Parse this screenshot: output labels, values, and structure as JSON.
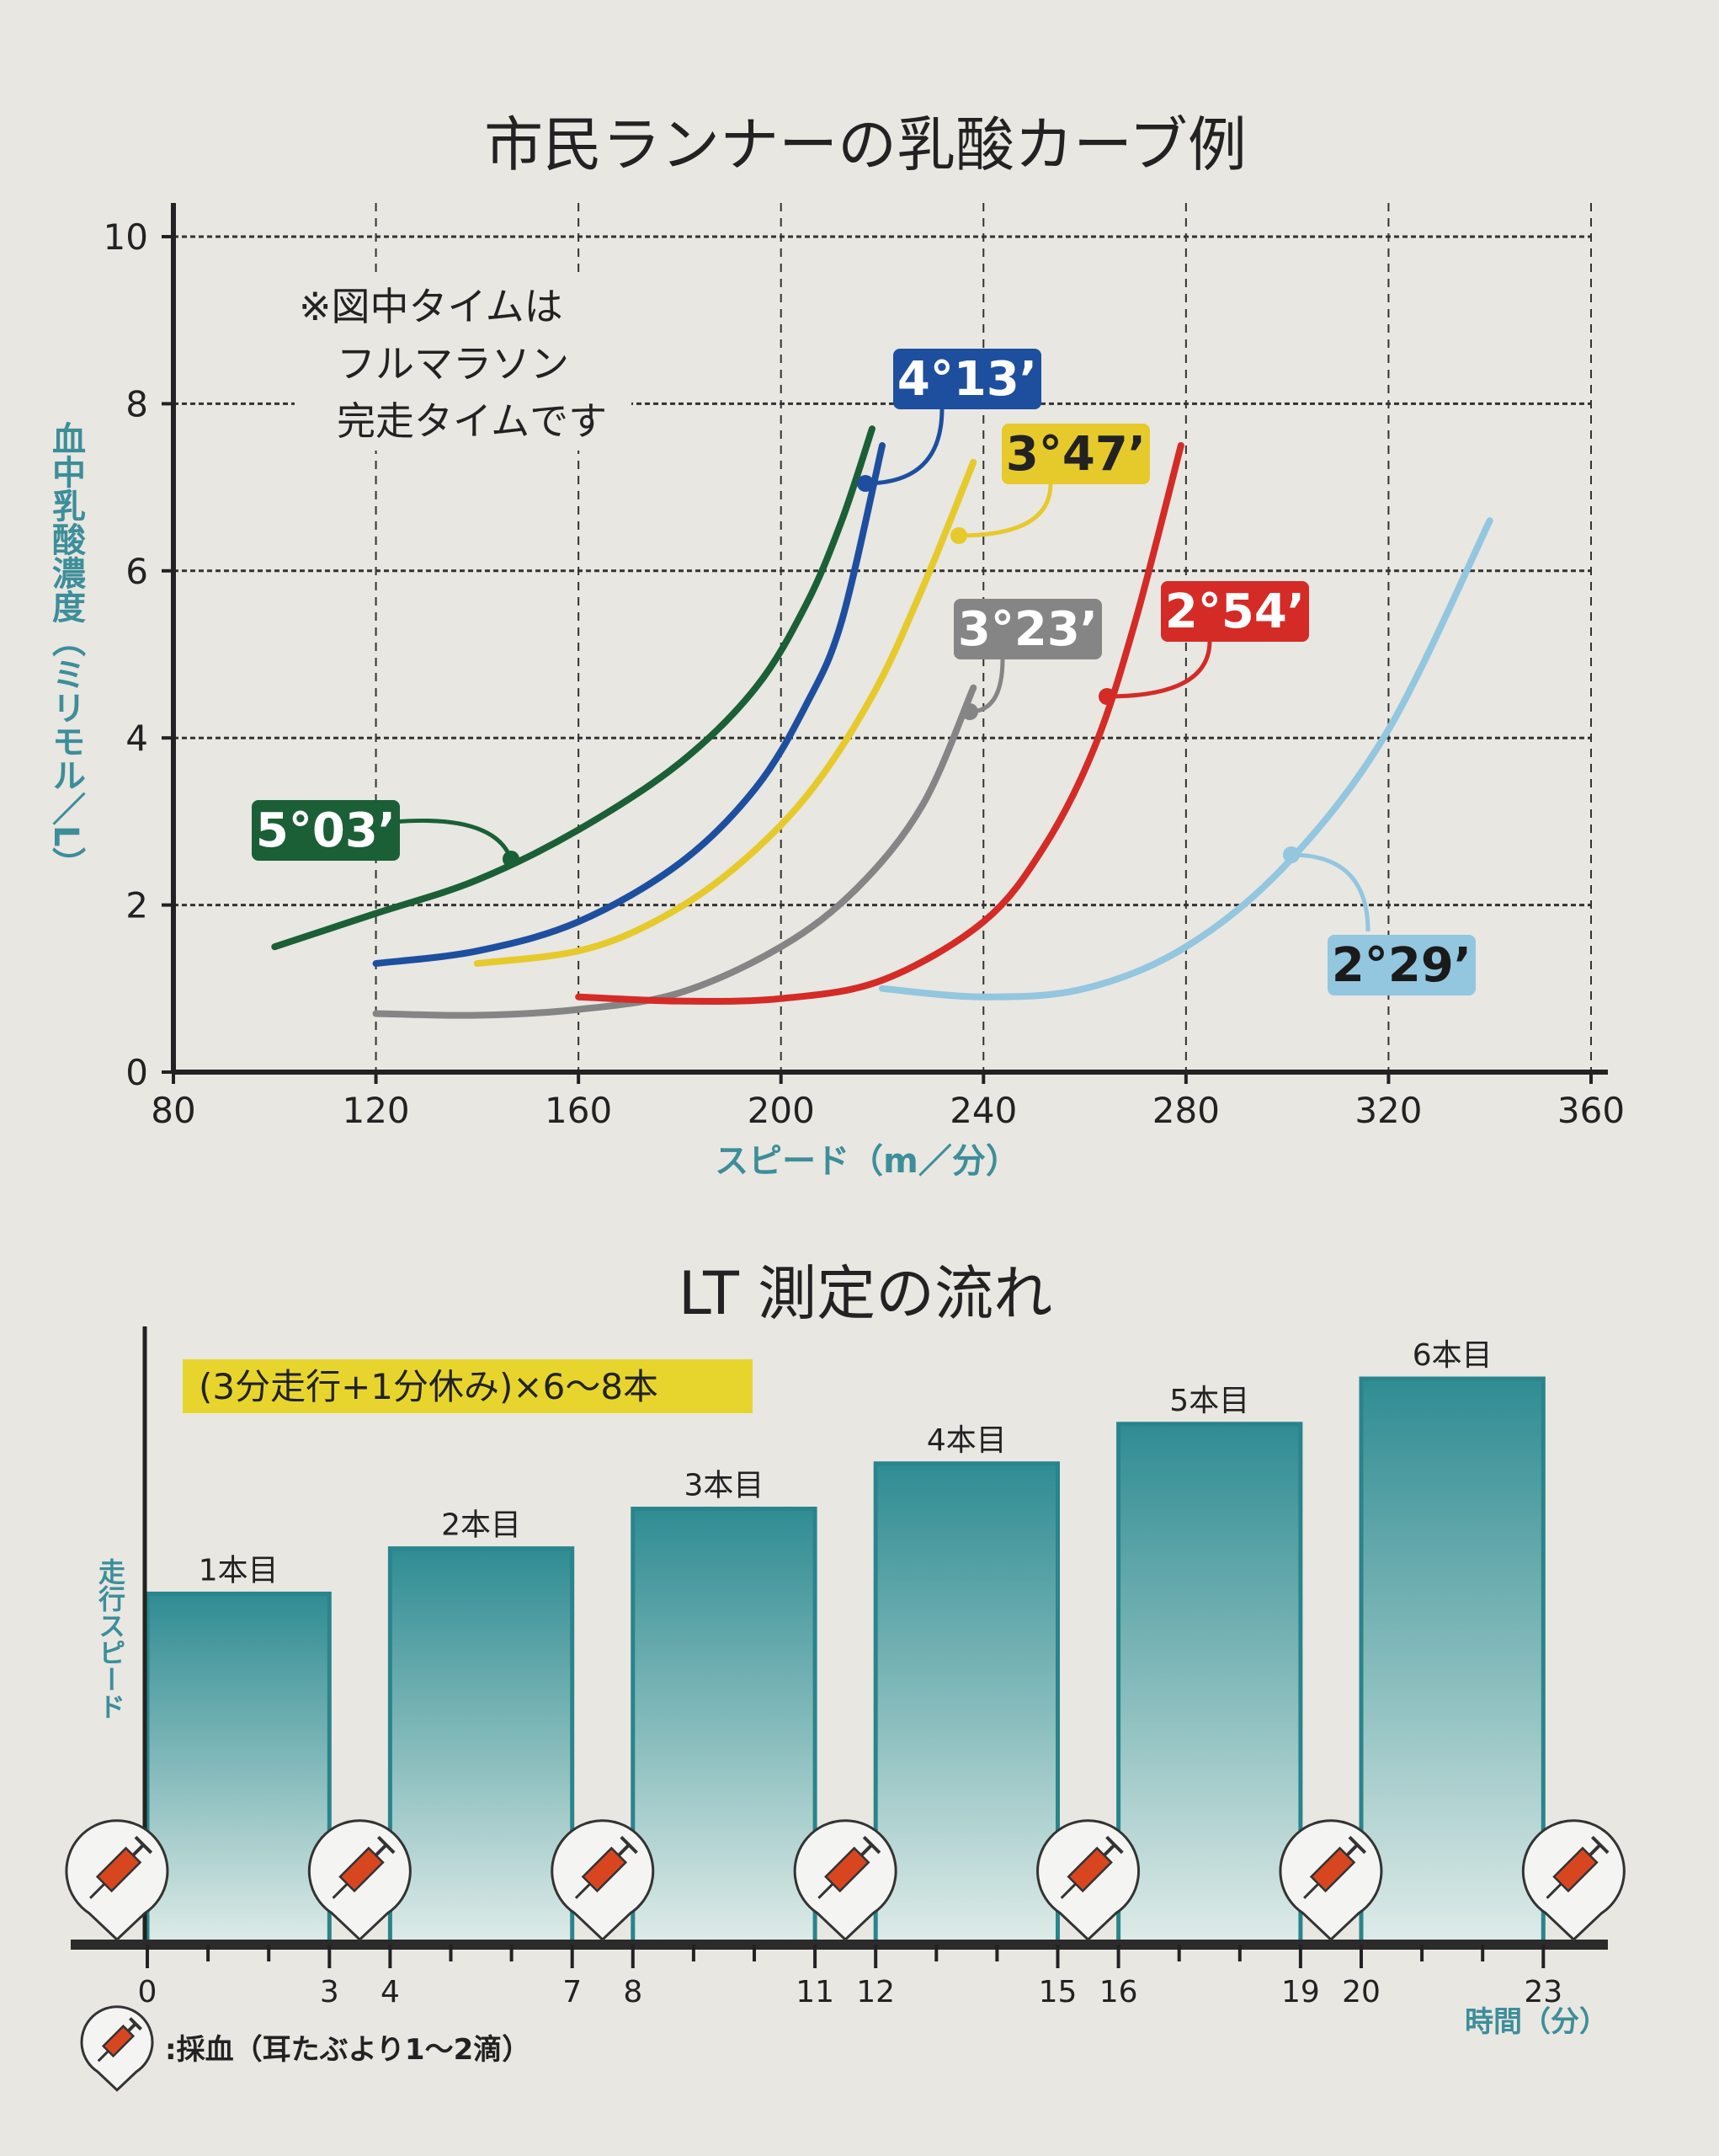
{
  "chart_data": [
    {
      "type": "line",
      "title": "市民ランナーの乳酸カーブ例",
      "xlabel": "スピード（m／分）",
      "ylabel": "血中乳酸濃度（ミリモル／L）",
      "xlim": [
        80,
        360
      ],
      "ylim": [
        0,
        10
      ],
      "xticks": [
        80,
        120,
        160,
        200,
        240,
        280,
        320,
        360
      ],
      "yticks": [
        0,
        2,
        4,
        6,
        8,
        10
      ],
      "grid": true,
      "note": [
        "※図中タイムは",
        "フルマラソン",
        "完走タイムです"
      ],
      "series": [
        {
          "name": "5°03’",
          "color": "#1b5f36",
          "label_text_color": "#ffffff",
          "x": [
            100,
            120,
            140,
            160,
            180,
            195,
            205,
            212,
            218
          ],
          "y": [
            1.5,
            1.9,
            2.3,
            2.9,
            3.7,
            4.6,
            5.6,
            6.6,
            7.7
          ]
        },
        {
          "name": "4°13’",
          "color": "#1e4f9f",
          "label_text_color": "#ffffff",
          "x": [
            120,
            140,
            160,
            180,
            195,
            205,
            212,
            220
          ],
          "y": [
            1.3,
            1.45,
            1.8,
            2.5,
            3.4,
            4.4,
            5.4,
            7.5
          ]
        },
        {
          "name": "3°47’",
          "color": "#e6ca2c",
          "label_text_color": "#222222",
          "x": [
            140,
            160,
            175,
            190,
            205,
            218,
            228,
            238
          ],
          "y": [
            1.3,
            1.45,
            1.8,
            2.4,
            3.3,
            4.5,
            5.8,
            7.3
          ]
        },
        {
          "name": "3°23’",
          "color": "#858585",
          "label_text_color": "#ffffff",
          "x": [
            120,
            140,
            160,
            180,
            200,
            215,
            228,
            238
          ],
          "y": [
            0.7,
            0.68,
            0.75,
            0.95,
            1.5,
            2.2,
            3.2,
            4.6
          ]
        },
        {
          "name": "2°54’",
          "color": "#d42b27",
          "label_text_color": "#ffffff",
          "x": [
            160,
            180,
            200,
            220,
            240,
            252,
            262,
            270,
            279
          ],
          "y": [
            0.9,
            0.85,
            0.88,
            1.1,
            1.8,
            2.7,
            3.9,
            5.4,
            7.5
          ]
        },
        {
          "name": "2°29’",
          "color": "#93c6df",
          "label_text_color": "#1a1a1a",
          "x": [
            220,
            240,
            260,
            280,
            300,
            320,
            340
          ],
          "y": [
            1.0,
            0.9,
            1.0,
            1.5,
            2.5,
            4.1,
            6.6
          ]
        }
      ]
    },
    {
      "type": "bar",
      "title": "LT 測定の流れ",
      "banner": "(3分走行+1分休み)×6〜8本",
      "xlabel": "時間（分）",
      "ylabel": "走行スピード",
      "xlim": [
        0,
        23
      ],
      "xtick_labels": [
        "0",
        "3",
        "4",
        "7",
        "8",
        "11",
        "12",
        "15",
        "16",
        "19",
        "20",
        "23"
      ],
      "categories": [
        "1本目",
        "2本目",
        "3本目",
        "4本目",
        "5本目",
        "6本目"
      ],
      "intervals": [
        [
          0,
          3
        ],
        [
          4,
          7
        ],
        [
          8,
          11
        ],
        [
          12,
          15
        ],
        [
          16,
          19
        ],
        [
          20,
          23
        ]
      ],
      "relative_speed": [
        0.62,
        0.7,
        0.77,
        0.85,
        0.92,
        1.0
      ],
      "bar_color": "#2f8c93",
      "blood_sample_times": [
        -0.5,
        3.5,
        7.5,
        11.5,
        15.5,
        19.5,
        23.5
      ],
      "legend": ":採血（耳たぶより1〜2滴）"
    }
  ]
}
